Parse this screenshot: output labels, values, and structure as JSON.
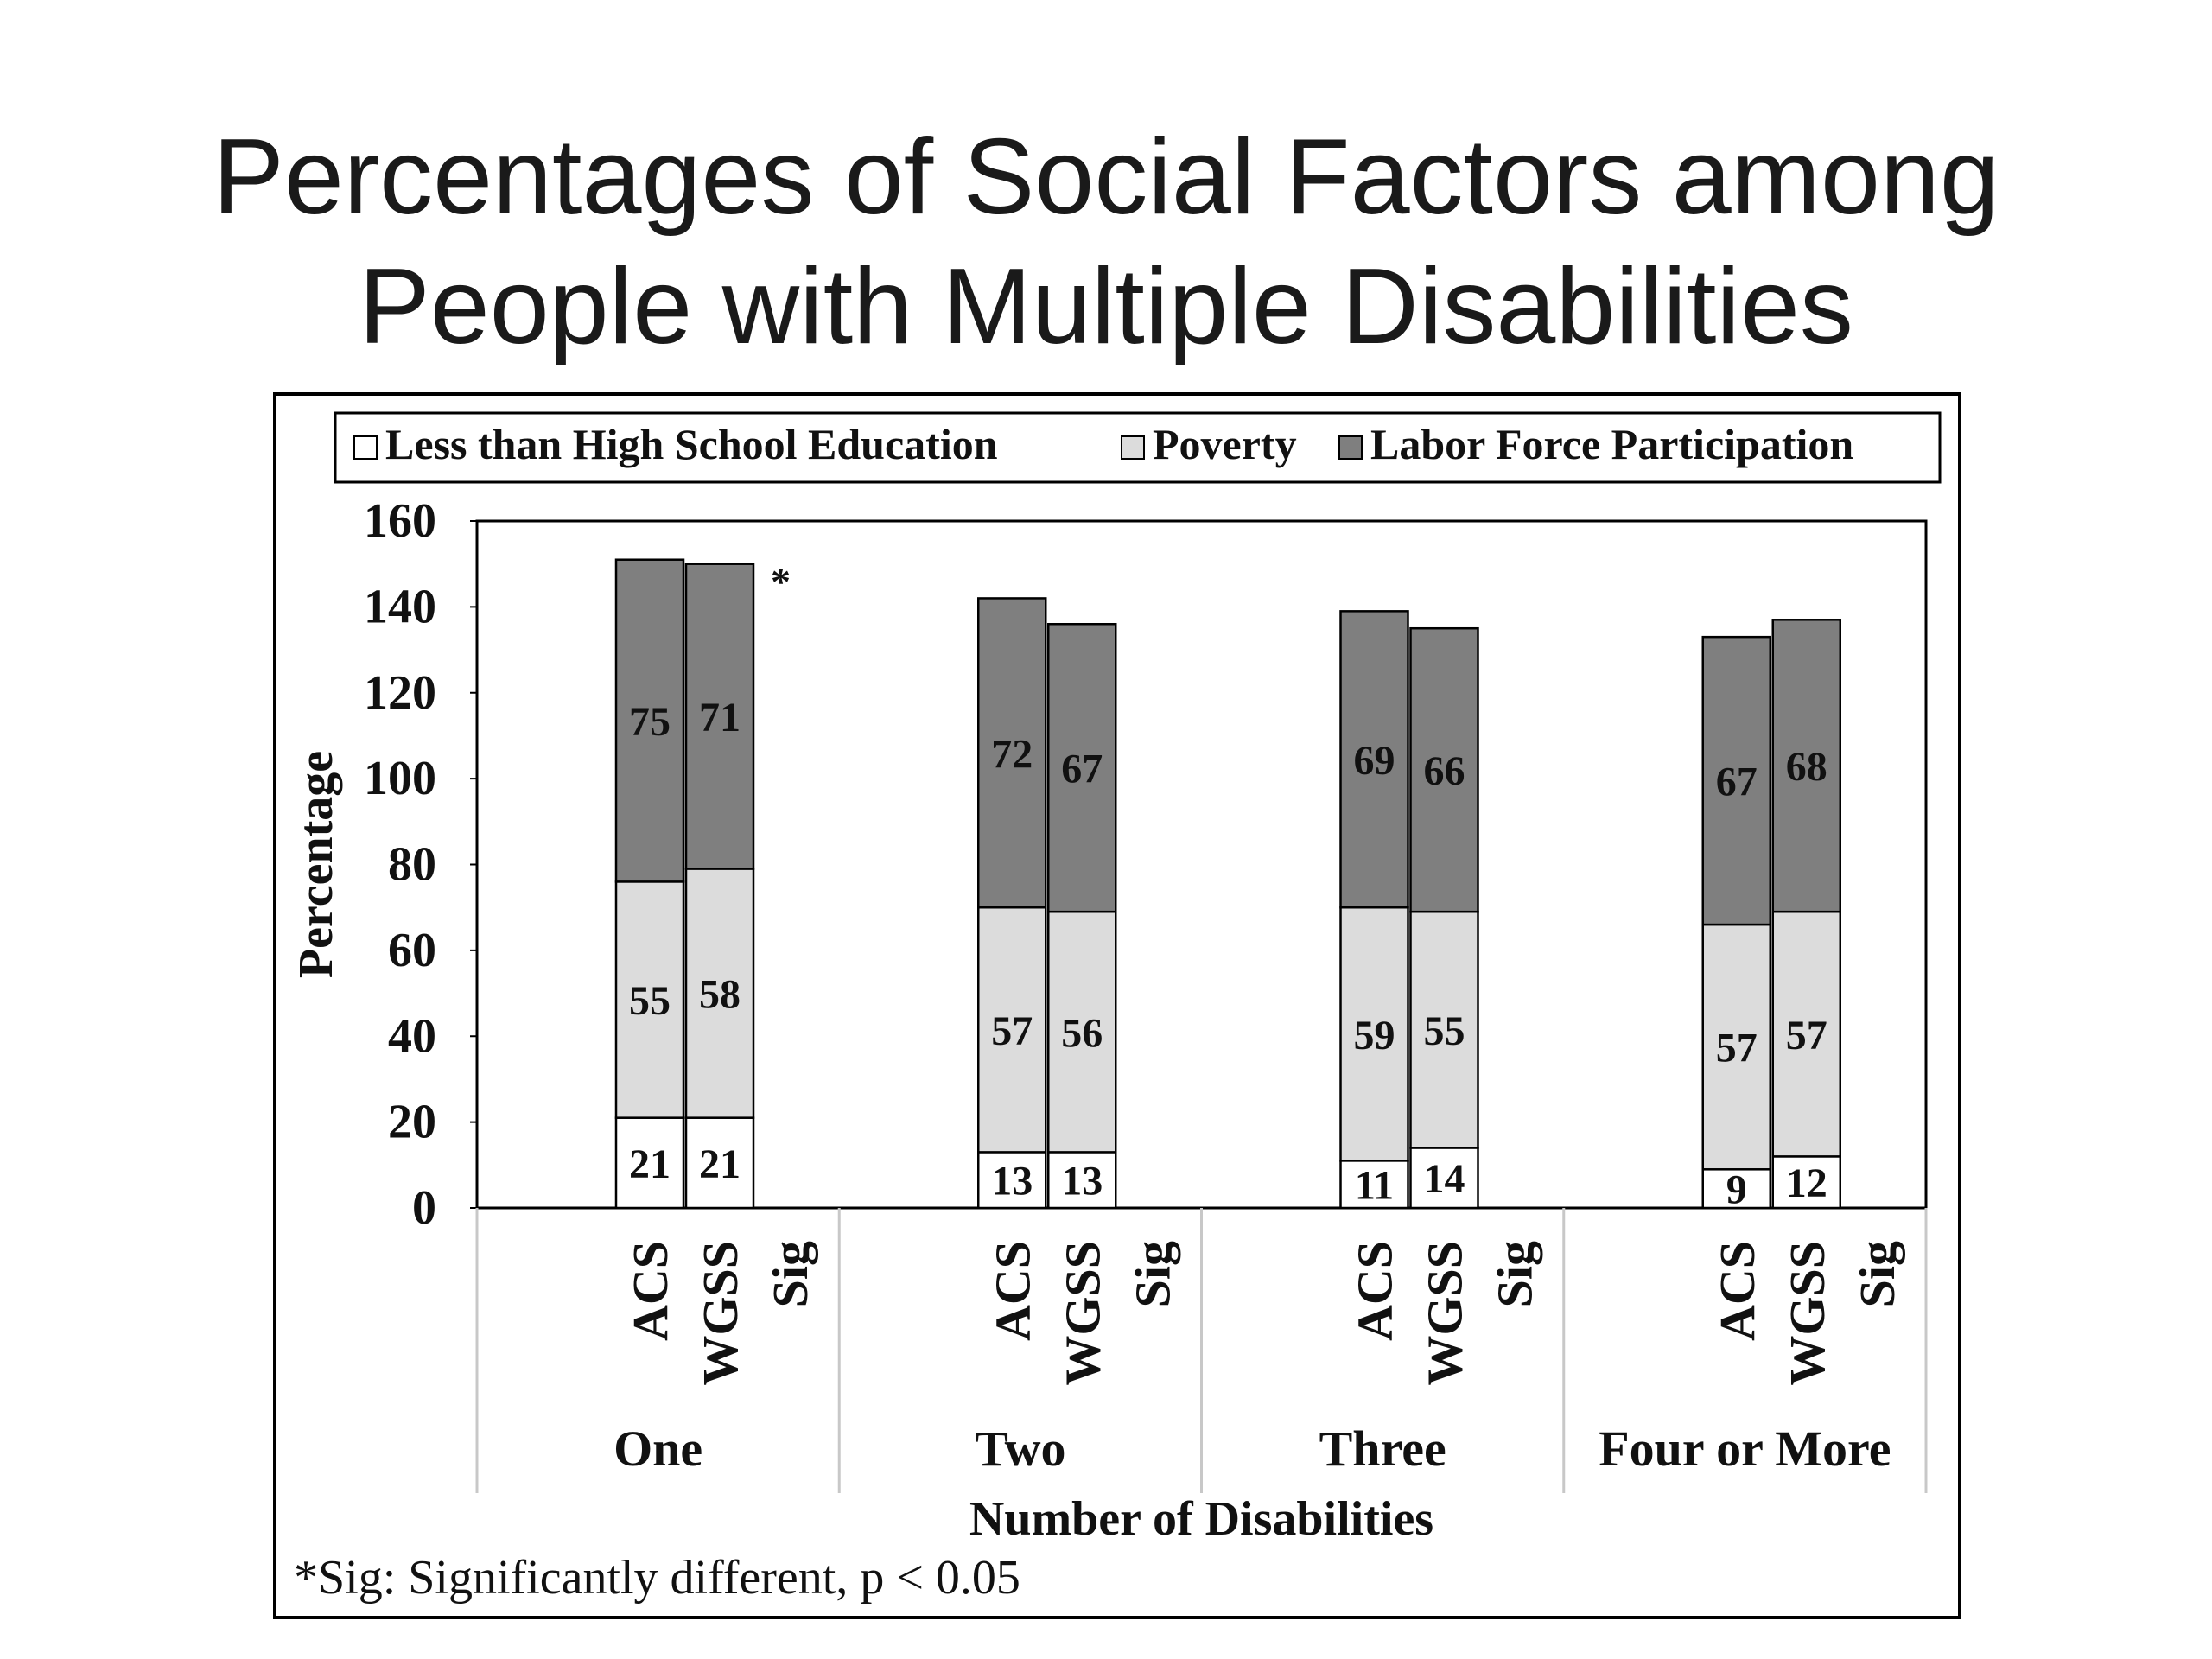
{
  "title": {
    "line1": "Percentages of Social Factors among",
    "line2": "People with Multiple Disabilities"
  },
  "chart_data": {
    "type": "bar",
    "stacked": true,
    "ylabel": "Percentage",
    "xlabel": "Number of Disabilities",
    "ylim": [
      0,
      160
    ],
    "yticks": [
      0,
      20,
      40,
      60,
      80,
      100,
      120,
      140,
      160
    ],
    "groups": [
      "One",
      "Two",
      "Three",
      "Four or More"
    ],
    "bar_labels": [
      "ACS",
      "WGSS",
      "Sig"
    ],
    "series": [
      {
        "name": "Less than High School Education",
        "color": "#ffffff",
        "values": [
          [
            21,
            21
          ],
          [
            13,
            13
          ],
          [
            11,
            14
          ],
          [
            9,
            12
          ]
        ]
      },
      {
        "name": "Poverty",
        "color": "#dcdcdc",
        "values": [
          [
            55,
            58
          ],
          [
            57,
            56
          ],
          [
            59,
            55
          ],
          [
            57,
            57
          ]
        ]
      },
      {
        "name": "Labor Force Participation",
        "color": "#7f7f7f",
        "values": [
          [
            75,
            71
          ],
          [
            72,
            67
          ],
          [
            69,
            66
          ],
          [
            67,
            68
          ]
        ]
      }
    ],
    "significance_marker": "*",
    "significant_groups": [
      "One"
    ],
    "legend_position": "top",
    "grid": false,
    "footnote": "*Sig: Significantly different, p < 0.05"
  }
}
